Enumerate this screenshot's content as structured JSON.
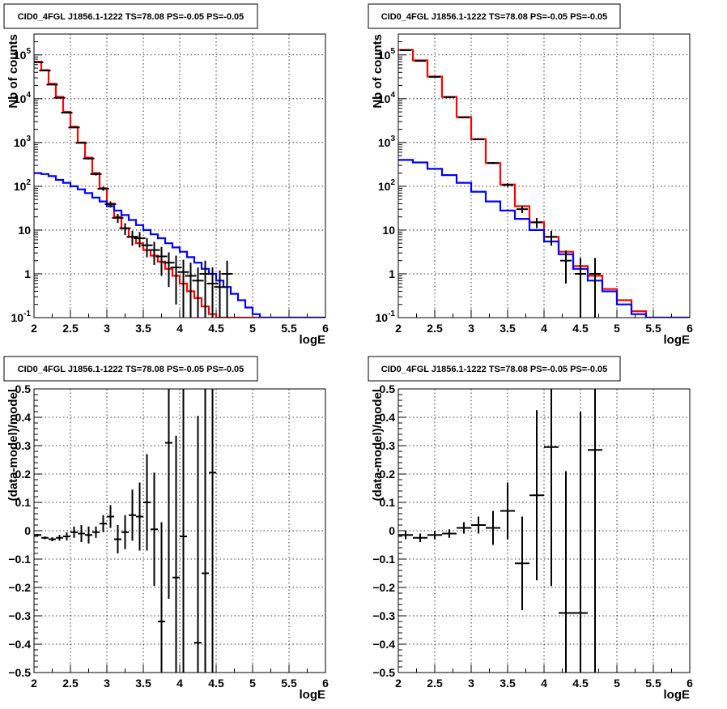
{
  "chart_data": [
    {
      "type": "line",
      "title": "CID0_4FGL J1856.1-1222 TS=78.08 PS=-0.05 PS=-0.05",
      "xlabel": "logE",
      "ylabel": "Nb of counts",
      "log_y": true,
      "grid": true,
      "xlim": [
        2,
        6
      ],
      "ylim": [
        0.1,
        300000
      ],
      "x_ticks": [
        "2",
        "2.5",
        "3",
        "3.5",
        "4",
        "4.5",
        "5",
        "5.5",
        "6"
      ],
      "y_ticks": [
        {
          "value": 0.1,
          "label": "10",
          "exp": "-1"
        },
        {
          "value": 1,
          "label": "1",
          "exp": ""
        },
        {
          "value": 10,
          "label": "10",
          "exp": ""
        },
        {
          "value": 100,
          "label": "10",
          "exp": "2"
        },
        {
          "value": 1000,
          "label": "10",
          "exp": "3"
        },
        {
          "value": 10000,
          "label": "10",
          "exp": "4"
        },
        {
          "value": 100000,
          "label": "10",
          "exp": "5"
        }
      ],
      "bin_edges": [
        2.0,
        2.1,
        2.2,
        2.3,
        2.4,
        2.5,
        2.6,
        2.7,
        2.8,
        2.9,
        3.0,
        3.1,
        3.2,
        3.3,
        3.4,
        3.5,
        3.6,
        3.7,
        3.8,
        3.9,
        4.0,
        4.1,
        4.2,
        4.3,
        4.4,
        4.5,
        4.6,
        4.7,
        4.8,
        4.9,
        5.0,
        5.1,
        5.2,
        5.3,
        5.4,
        5.5,
        5.6,
        5.7,
        5.8,
        5.9,
        6.0
      ],
      "series": [
        {
          "color": "#ff0000",
          "style": "step",
          "values": [
            70000,
            45000,
            22000,
            11000,
            5000,
            2300,
            1000,
            450,
            200,
            90,
            40,
            20,
            11,
            7,
            5,
            3.5,
            2.6,
            1.9,
            1.3,
            0.9,
            0.6,
            0.4,
            0.28,
            0.18,
            0.12,
            0.08,
            0.08,
            0.08,
            0.08,
            0.08,
            0.08,
            0.08,
            0.08,
            0.08,
            0.08,
            0.08,
            0.08,
            0.08,
            0.08,
            0.08
          ]
        },
        {
          "color": "#0000ff",
          "style": "step",
          "values": [
            200,
            190,
            170,
            140,
            120,
            100,
            85,
            70,
            55,
            45,
            35,
            28,
            22,
            17,
            13,
            10,
            8,
            6.5,
            5,
            4,
            3.2,
            2.4,
            1.8,
            1.3,
            1.0,
            0.7,
            0.5,
            0.35,
            0.25,
            0.17,
            0.12,
            0.08,
            0.08,
            0.08,
            0.08,
            0.08,
            0.08,
            0.08,
            0.08,
            0.08
          ]
        },
        {
          "color": "#000000",
          "style": "points",
          "x": [
            2.05,
            2.15,
            2.25,
            2.35,
            2.45,
            2.55,
            2.65,
            2.75,
            2.85,
            2.95,
            3.05,
            3.15,
            3.25,
            3.35,
            3.45,
            3.55,
            3.65,
            3.75,
            3.85,
            3.95,
            4.05,
            4.15,
            4.25,
            4.35,
            4.45,
            4.55,
            4.65
          ],
          "y": [
            68000,
            44000,
            21000,
            10500,
            4800,
            2200,
            980,
            430,
            190,
            88,
            39,
            19,
            11,
            7,
            6.5,
            4.5,
            3.5,
            2.5,
            1.8,
            1.4,
            1.1,
            0.9,
            0.7,
            1,
            0.6,
            0.5,
            1
          ],
          "yerr_low": [
            260,
            210,
            145,
            102,
            69,
            47,
            31,
            21,
            14,
            9.4,
            6.2,
            4.4,
            3.3,
            2.6,
            2.5,
            2.1,
            1.9,
            1.6,
            1.3,
            1.2,
            1.0,
            0.9,
            0.7,
            0.99,
            0.59,
            0.49,
            0.99
          ],
          "yerr_high": [
            260,
            210,
            145,
            102,
            69,
            47,
            31,
            21,
            14,
            9.4,
            6.2,
            4.4,
            3.3,
            2.6,
            2.5,
            2.1,
            1.9,
            1.6,
            1.3,
            1.2,
            1.0,
            0.9,
            0.7,
            1.0,
            0.8,
            0.7,
            1.0
          ]
        }
      ]
    },
    {
      "type": "line",
      "title": "CID0_4FGL J1856.1-1222 TS=78.08 PS=-0.05 PS=-0.05",
      "xlabel": "logE",
      "ylabel": "Nb of counts",
      "log_y": true,
      "grid": true,
      "xlim": [
        2,
        6
      ],
      "ylim": [
        0.1,
        300000
      ],
      "x_ticks": [
        "2",
        "2.5",
        "3",
        "3.5",
        "4",
        "4.5",
        "5",
        "5.5",
        "6"
      ],
      "y_ticks": [
        {
          "value": 0.1,
          "label": "10",
          "exp": "-1"
        },
        {
          "value": 1,
          "label": "1",
          "exp": ""
        },
        {
          "value": 10,
          "label": "10",
          "exp": ""
        },
        {
          "value": 100,
          "label": "10",
          "exp": "2"
        },
        {
          "value": 1000,
          "label": "10",
          "exp": "3"
        },
        {
          "value": 10000,
          "label": "10",
          "exp": "4"
        },
        {
          "value": 100000,
          "label": "10",
          "exp": "5"
        }
      ],
      "bin_edges": [
        2.0,
        2.2,
        2.4,
        2.6,
        2.8,
        3.0,
        3.2,
        3.4,
        3.6,
        3.8,
        4.0,
        4.2,
        4.4,
        4.6,
        4.8,
        5.0,
        5.2,
        5.4,
        5.6,
        5.8,
        6.0
      ],
      "series": [
        {
          "color": "#ff0000",
          "style": "step",
          "values": [
            130000,
            75000,
            32000,
            11000,
            3800,
            1200,
            340,
            110,
            35,
            15,
            7,
            3.2,
            1.5,
            0.9,
            0.45,
            0.25,
            0.14,
            0.08,
            0.08,
            0.08
          ]
        },
        {
          "color": "#0000ff",
          "style": "step",
          "values": [
            400,
            350,
            250,
            180,
            120,
            75,
            45,
            28,
            18,
            10,
            5.5,
            2.8,
            1.3,
            0.7,
            0.4,
            0.2,
            0.12,
            0.08,
            0.08,
            0.08
          ]
        },
        {
          "color": "#000000",
          "style": "points",
          "x": [
            2.1,
            2.3,
            2.5,
            2.7,
            2.9,
            3.1,
            3.3,
            3.5,
            3.7,
            3.9,
            4.1,
            4.3,
            4.5,
            4.7
          ],
          "y": [
            128000,
            73000,
            31500,
            10800,
            3750,
            1180,
            340,
            107,
            30,
            15,
            7,
            2,
            1,
            1
          ],
          "yerr_low": [
            360,
            270,
            177,
            104,
            61,
            34,
            18,
            10,
            5.5,
            3.9,
            2.6,
            1.4,
            0.99,
            0.99
          ],
          "yerr_high": [
            360,
            270,
            177,
            104,
            61,
            34,
            18,
            10,
            5.5,
            3.9,
            2.6,
            1.4,
            1.3,
            1.3
          ]
        }
      ]
    },
    {
      "type": "scatter",
      "title": "CID0_4FGL J1856.1-1222 TS=78.08 PS=-0.05 PS=-0.05",
      "xlabel": "logE",
      "ylabel": "(data-model)/model",
      "log_y": false,
      "grid": true,
      "xlim": [
        2,
        6
      ],
      "ylim": [
        -0.5,
        0.5
      ],
      "x_ticks": [
        "2",
        "2.5",
        "3",
        "3.5",
        "4",
        "4.5",
        "5",
        "5.5",
        "6"
      ],
      "y_ticks": [
        {
          "value": -0.5,
          "label": "−0.5"
        },
        {
          "value": -0.4,
          "label": "−0.4"
        },
        {
          "value": -0.3,
          "label": "−0.3"
        },
        {
          "value": -0.2,
          "label": "−0.2"
        },
        {
          "value": -0.1,
          "label": "−0.1"
        },
        {
          "value": 0,
          "label": "0"
        },
        {
          "value": 0.1,
          "label": "0.1"
        },
        {
          "value": 0.2,
          "label": "0.2"
        },
        {
          "value": 0.3,
          "label": "0.3"
        },
        {
          "value": 0.4,
          "label": "0.4"
        },
        {
          "value": 0.5,
          "label": "0.5"
        }
      ],
      "series": [
        {
          "color": "#000000",
          "style": "points",
          "xerr": 0.05,
          "x": [
            2.05,
            2.15,
            2.25,
            2.35,
            2.45,
            2.55,
            2.65,
            2.75,
            2.85,
            2.95,
            3.05,
            3.15,
            3.25,
            3.35,
            3.45,
            3.55,
            3.65,
            3.75,
            3.85,
            3.95,
            4.05,
            4.25,
            4.35,
            4.45
          ],
          "y": [
            -0.015,
            -0.025,
            -0.03,
            -0.025,
            -0.02,
            -0.005,
            -0.01,
            -0.015,
            -0.005,
            0.025,
            0.05,
            -0.03,
            -0.005,
            0.055,
            0.05,
            0.1,
            0.005,
            -0.32,
            0.31,
            -0.165,
            -0.02,
            -0.395,
            -0.15,
            0.205
          ],
          "yerr": [
            0.004,
            0.005,
            0.007,
            0.01,
            0.014,
            0.02,
            0.03,
            0.03,
            0.02,
            0.03,
            0.04,
            0.05,
            0.06,
            0.09,
            0.12,
            0.17,
            0.2,
            0.35,
            0.55,
            0.5,
            0.7,
            0.8,
            0.9,
            0.9
          ]
        }
      ]
    },
    {
      "type": "scatter",
      "title": "CID0_4FGL J1856.1-1222 TS=78.08 PS=-0.05 PS=-0.05",
      "xlabel": "logE",
      "ylabel": "(data-model)/model",
      "log_y": false,
      "grid": true,
      "xlim": [
        2,
        6
      ],
      "ylim": [
        -0.5,
        0.5
      ],
      "x_ticks": [
        "2",
        "2.5",
        "3",
        "3.5",
        "4",
        "4.5",
        "5",
        "5.5",
        "6"
      ],
      "y_ticks": [
        {
          "value": -0.5,
          "label": "−0.5"
        },
        {
          "value": -0.4,
          "label": "−0.4"
        },
        {
          "value": -0.3,
          "label": "−0.3"
        },
        {
          "value": -0.2,
          "label": "−0.2"
        },
        {
          "value": -0.1,
          "label": "−0.1"
        },
        {
          "value": 0,
          "label": "0"
        },
        {
          "value": 0.1,
          "label": "0.1"
        },
        {
          "value": 0.2,
          "label": "0.2"
        },
        {
          "value": 0.3,
          "label": "0.3"
        },
        {
          "value": 0.4,
          "label": "0.4"
        },
        {
          "value": 0.5,
          "label": "0.5"
        }
      ],
      "series": [
        {
          "color": "#000000",
          "style": "points",
          "xerr": 0.1,
          "x": [
            2.1,
            2.3,
            2.5,
            2.7,
            2.9,
            3.1,
            3.3,
            3.5,
            3.7,
            3.9,
            4.1,
            4.3,
            4.5,
            4.7
          ],
          "y": [
            -0.015,
            -0.025,
            -0.015,
            -0.01,
            0.01,
            0.02,
            0.01,
            0.07,
            -0.115,
            0.125,
            0.295,
            -0.29,
            -0.29,
            0.285
          ],
          "yerr": [
            0.015,
            0.015,
            0.015,
            0.015,
            0.02,
            0.03,
            0.06,
            0.1,
            0.165,
            0.3,
            0.49,
            0.5,
            0.71,
            0.8
          ]
        }
      ]
    }
  ]
}
